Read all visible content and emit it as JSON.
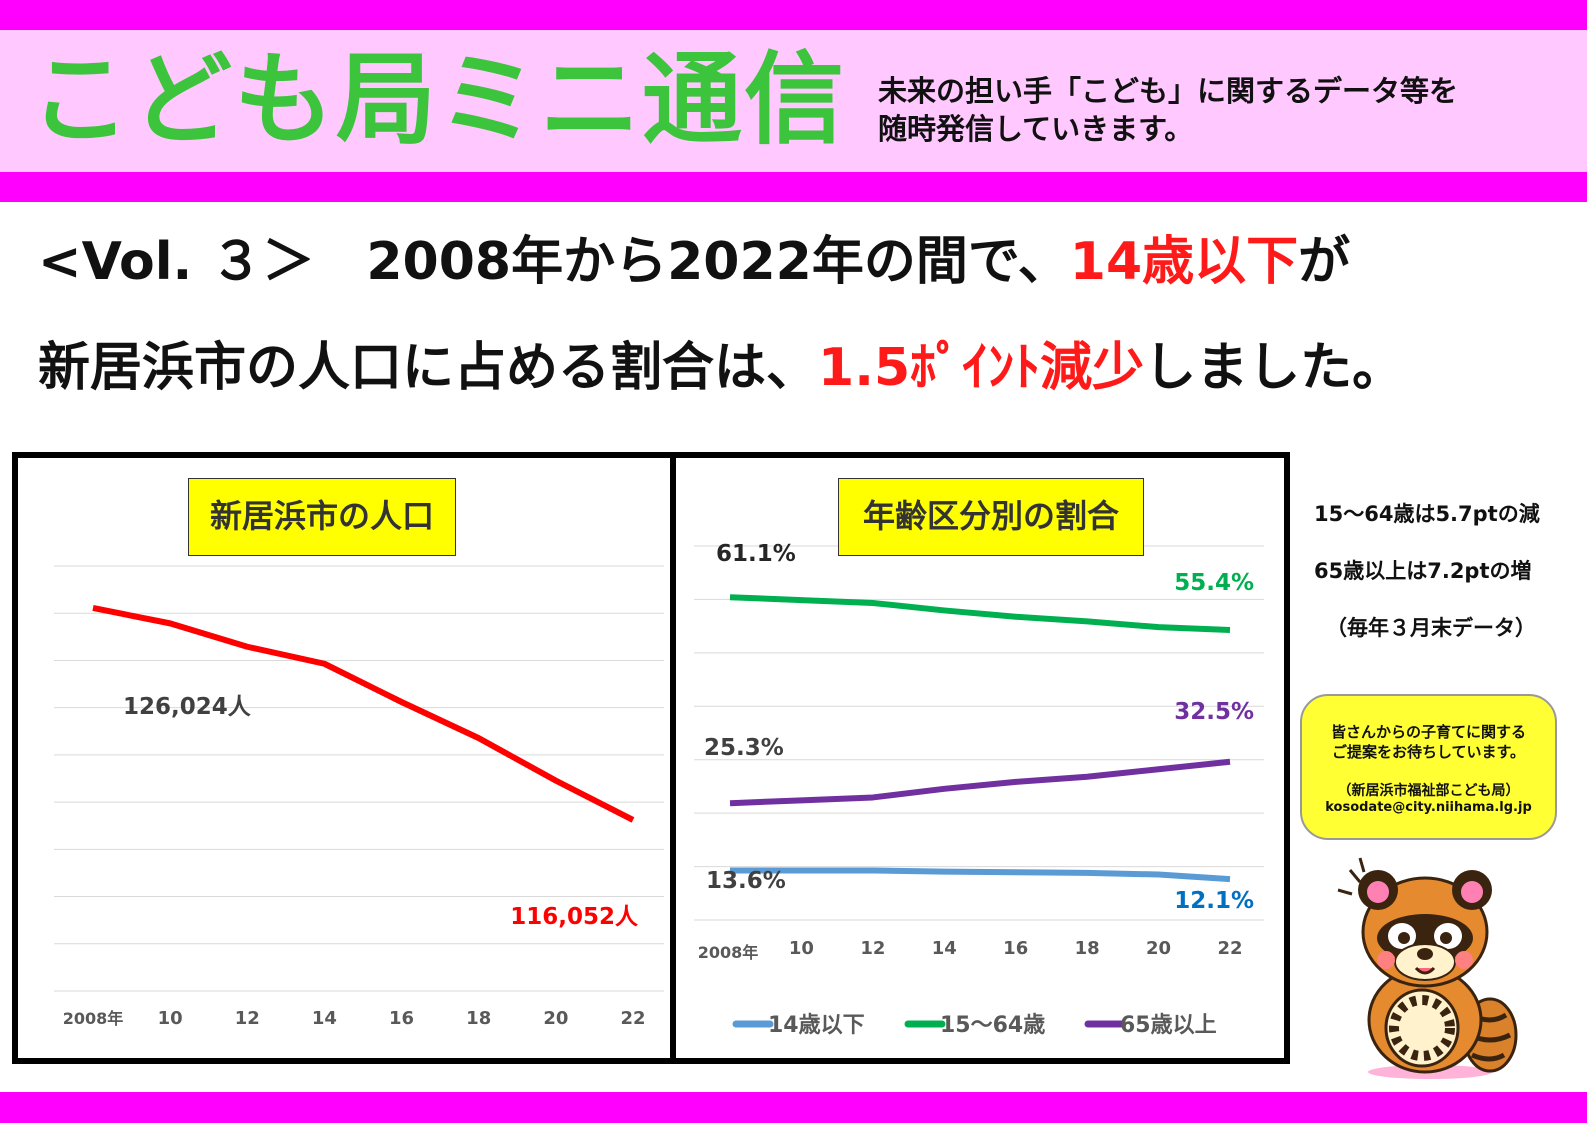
{
  "header": {
    "title": "こども局ミニ通信",
    "note_line1": "未来の担い手「こども」に関するデータ等を",
    "note_line2": "随時発信していきます。"
  },
  "headline": {
    "line1_prefix": "<Vol. ３＞　2008年から2022年の間で、",
    "line1_highlight": "14歳以下",
    "line1_suffix": "が",
    "line2_prefix": "新居浜市の人口に占める割合は、",
    "line2_highlight": "1.5ﾎﾟｲﾝﾄ減少",
    "line2_suffix": "しました。"
  },
  "side_notes": {
    "note1": "15～64歳は5.7ptの減",
    "note2": "65歳以上は7.2ptの増",
    "note3": "（毎年３月末データ）"
  },
  "contact": {
    "line1": "皆さんからの子育てに関する",
    "line2": "ご提案をお待ちしています。",
    "dept": "（新居浜市福祉部こども局）",
    "email": "kosodate@city.niihama.lg.jp"
  },
  "colors": {
    "band": "#ff00ff",
    "header_bg": "#ffc8ff",
    "title_green": "#3cc43c",
    "highlight_red": "#ff1a1a",
    "title_box": "#ffff00",
    "population_line": "#ff0000",
    "series_14": "#5b9bd5",
    "series_15_64": "#00b050",
    "series_65": "#7030a0"
  },
  "chart_data": [
    {
      "type": "line",
      "title": "新居浜市の人口",
      "x": [
        2008,
        2010,
        2012,
        2014,
        2016,
        2018,
        2020,
        2022
      ],
      "x_tick_labels": [
        "2008年",
        "10",
        "12",
        "14",
        "16",
        "18",
        "20",
        "22"
      ],
      "series": [
        {
          "values": [
            126024,
            125300,
            124200,
            123400,
            121600,
            119900,
            117900,
            116052
          ]
        }
      ],
      "annotations": [
        {
          "x": 2008,
          "text": "126,024人"
        },
        {
          "x": 2022,
          "text": "116,052人"
        }
      ],
      "ylim": [
        108000,
        128000
      ],
      "grid": true
    },
    {
      "type": "line",
      "title": "年齢区分別の割合",
      "x": [
        2008,
        2010,
        2012,
        2014,
        2016,
        2018,
        2020,
        2022
      ],
      "x_tick_labels": [
        "2008年",
        "10",
        "12",
        "14",
        "16",
        "18",
        "20",
        "22"
      ],
      "series": [
        {
          "name": "14歳以下",
          "values": [
            13.6,
            13.6,
            13.6,
            13.4,
            13.3,
            13.2,
            12.9,
            12.1
          ]
        },
        {
          "name": "15～64歳",
          "values": [
            61.1,
            60.6,
            60.1,
            58.8,
            57.7,
            56.9,
            55.9,
            55.4
          ]
        },
        {
          "name": "65歳以上",
          "values": [
            25.3,
            25.8,
            26.3,
            27.8,
            29.0,
            29.9,
            31.2,
            32.5
          ]
        }
      ],
      "annotations": [
        {
          "series": "15～64歳",
          "x": 2008,
          "text": "61.1%"
        },
        {
          "series": "15～64歳",
          "x": 2022,
          "text": "55.4%"
        },
        {
          "series": "65歳以上",
          "x": 2008,
          "text": "25.3%"
        },
        {
          "series": "65歳以上",
          "x": 2022,
          "text": "32.5%"
        },
        {
          "series": "14歳以下",
          "x": 2008,
          "text": "13.6%"
        },
        {
          "series": "14歳以下",
          "x": 2022,
          "text": "12.1%"
        }
      ],
      "legend_position": "bottom",
      "grid": true
    }
  ]
}
